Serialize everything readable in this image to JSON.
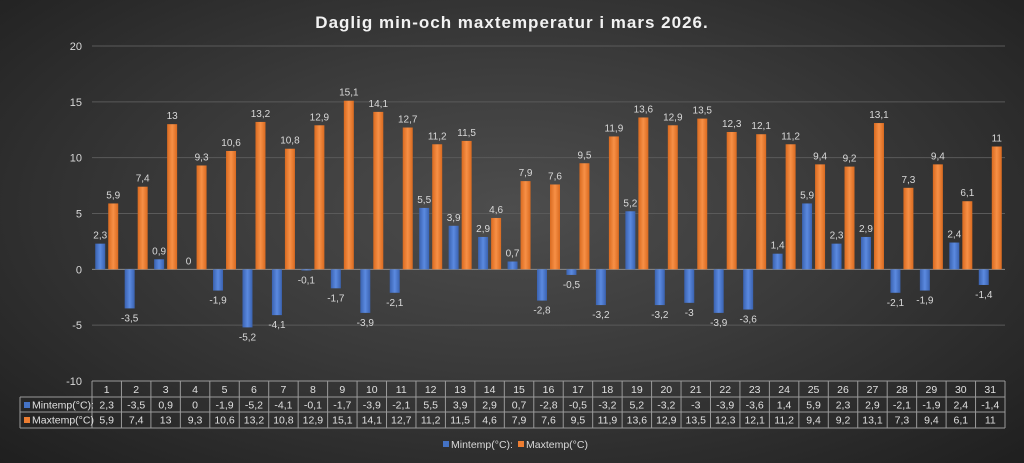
{
  "chart_data": {
    "type": "bar",
    "title": "Daglig min-och maxtemperatur i mars 2026.",
    "xlabel": "",
    "ylabel": "",
    "ylim": [
      -10,
      20
    ],
    "yticks": [
      -10,
      -5,
      0,
      5,
      10,
      15,
      20
    ],
    "grid": true,
    "legend_position": "bottom",
    "categories": [
      "1",
      "2",
      "3",
      "4",
      "5",
      "6",
      "7",
      "8",
      "9",
      "10",
      "11",
      "12",
      "13",
      "14",
      "15",
      "16",
      "17",
      "18",
      "19",
      "20",
      "21",
      "22",
      "23",
      "24",
      "25",
      "26",
      "27",
      "28",
      "29",
      "30",
      "31"
    ],
    "series": [
      {
        "name": "Mintemp(°C):",
        "color": "#4472c4",
        "values": [
          2.3,
          -3.5,
          0.9,
          0,
          -1.9,
          -5.2,
          -4.1,
          -0.1,
          -1.7,
          -3.9,
          -2.1,
          5.5,
          3.9,
          2.9,
          0.7,
          -2.8,
          -0.5,
          -3.2,
          5.2,
          -3.2,
          -3,
          -3.9,
          -3.6,
          1.4,
          5.9,
          2.3,
          2.9,
          -2.1,
          -1.9,
          2.4,
          -1.4
        ]
      },
      {
        "name": "Maxtemp(°C)",
        "color": "#ed7d31",
        "values": [
          5.9,
          7.4,
          13,
          9.3,
          10.6,
          13.2,
          10.8,
          12.9,
          15.1,
          14.1,
          12.7,
          11.2,
          11.5,
          4.6,
          7.9,
          7.6,
          9.5,
          11.9,
          13.6,
          12.9,
          13.5,
          12.3,
          12.1,
          11.2,
          9.4,
          9.2,
          13.1,
          7.3,
          9.4,
          6.1,
          11
        ]
      }
    ],
    "data_table": true
  }
}
